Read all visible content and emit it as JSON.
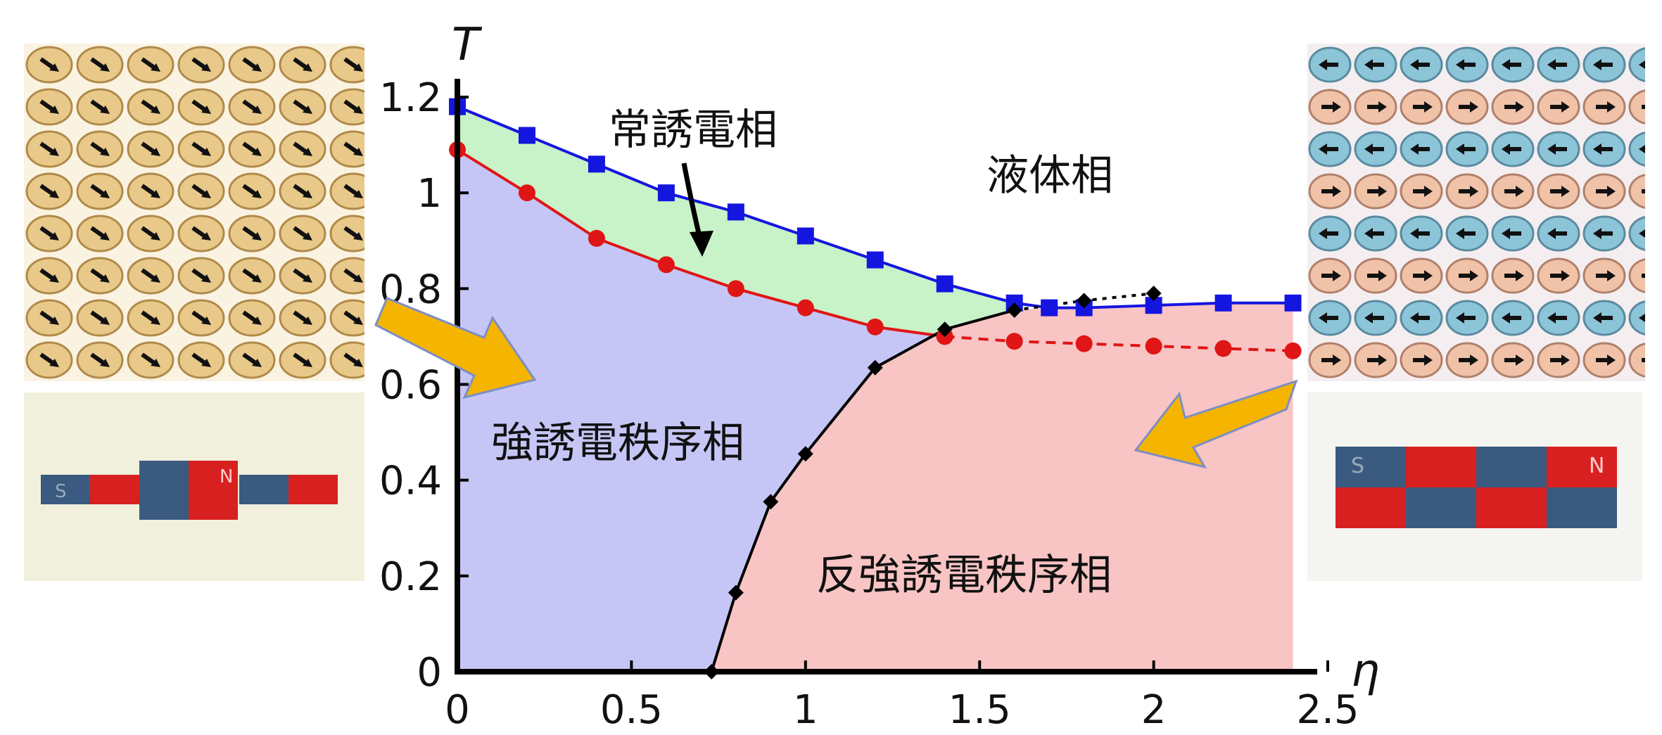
{
  "chart_data": {
    "type": "line",
    "title": "",
    "xlabel": "η",
    "ylabel": "T",
    "xlim": [
      0,
      2.5
    ],
    "ylim": [
      0,
      1.25
    ],
    "xticks": [
      "0",
      "0.5",
      "1",
      "1.5",
      "2",
      "2.5"
    ],
    "yticks": [
      "0",
      "0.2",
      "0.4",
      "0.6",
      "0.8",
      "1",
      "1.2"
    ],
    "series": [
      {
        "color": "#1515e0",
        "marker": "square",
        "line": "solid",
        "x": [
          0,
          0.2,
          0.4,
          0.6,
          0.8,
          1.0,
          1.2,
          1.4,
          1.6,
          1.7,
          1.8,
          2.0,
          2.2,
          2.4
        ],
        "y": [
          1.18,
          1.12,
          1.06,
          1.0,
          0.96,
          0.91,
          0.86,
          0.81,
          0.77,
          0.76,
          0.76,
          0.765,
          0.77,
          0.77
        ]
      },
      {
        "color": "#e01515",
        "marker": "circle",
        "line": "solid-then-dashed",
        "dashed_from_index": 7,
        "x": [
          0,
          0.2,
          0.4,
          0.6,
          0.8,
          1.0,
          1.2,
          1.4,
          1.6,
          1.8,
          2.0,
          2.2,
          2.4
        ],
        "y": [
          1.09,
          1.0,
          0.905,
          0.85,
          0.8,
          0.76,
          0.72,
          0.7,
          0.69,
          0.685,
          0.68,
          0.675,
          0.67
        ]
      },
      {
        "color": "#000000",
        "marker": "diamond",
        "line": "solid-then-dotted",
        "dotted_from_index": 9,
        "x": [
          0.73,
          0.8,
          0.9,
          1.0,
          1.2,
          1.4,
          1.6,
          1.8,
          2.0
        ],
        "y": [
          0.0,
          0.165,
          0.355,
          0.455,
          0.635,
          0.715,
          0.755,
          0.775,
          0.79
        ]
      }
    ],
    "regions": [
      {
        "label": "常誘電相",
        "color": "#c8f2c8"
      },
      {
        "label": "液体相",
        "color": "#ffffff"
      },
      {
        "label": "強誘電秩序相",
        "color": "#c6c6f6"
      },
      {
        "label": "反強誘電秩序相",
        "color": "#f8c4c4"
      }
    ],
    "grid": false,
    "legend": "none"
  },
  "insets": {
    "ferro_lattice_color": "#e8c98a",
    "antiferro_lattice_colors": [
      "#8cc4d8",
      "#f0c2a8"
    ],
    "magnet_colors": [
      "#3a5a80",
      "#d82020"
    ],
    "magnet_letters": [
      "S",
      "N"
    ],
    "arrow_color": "#f5b400"
  }
}
